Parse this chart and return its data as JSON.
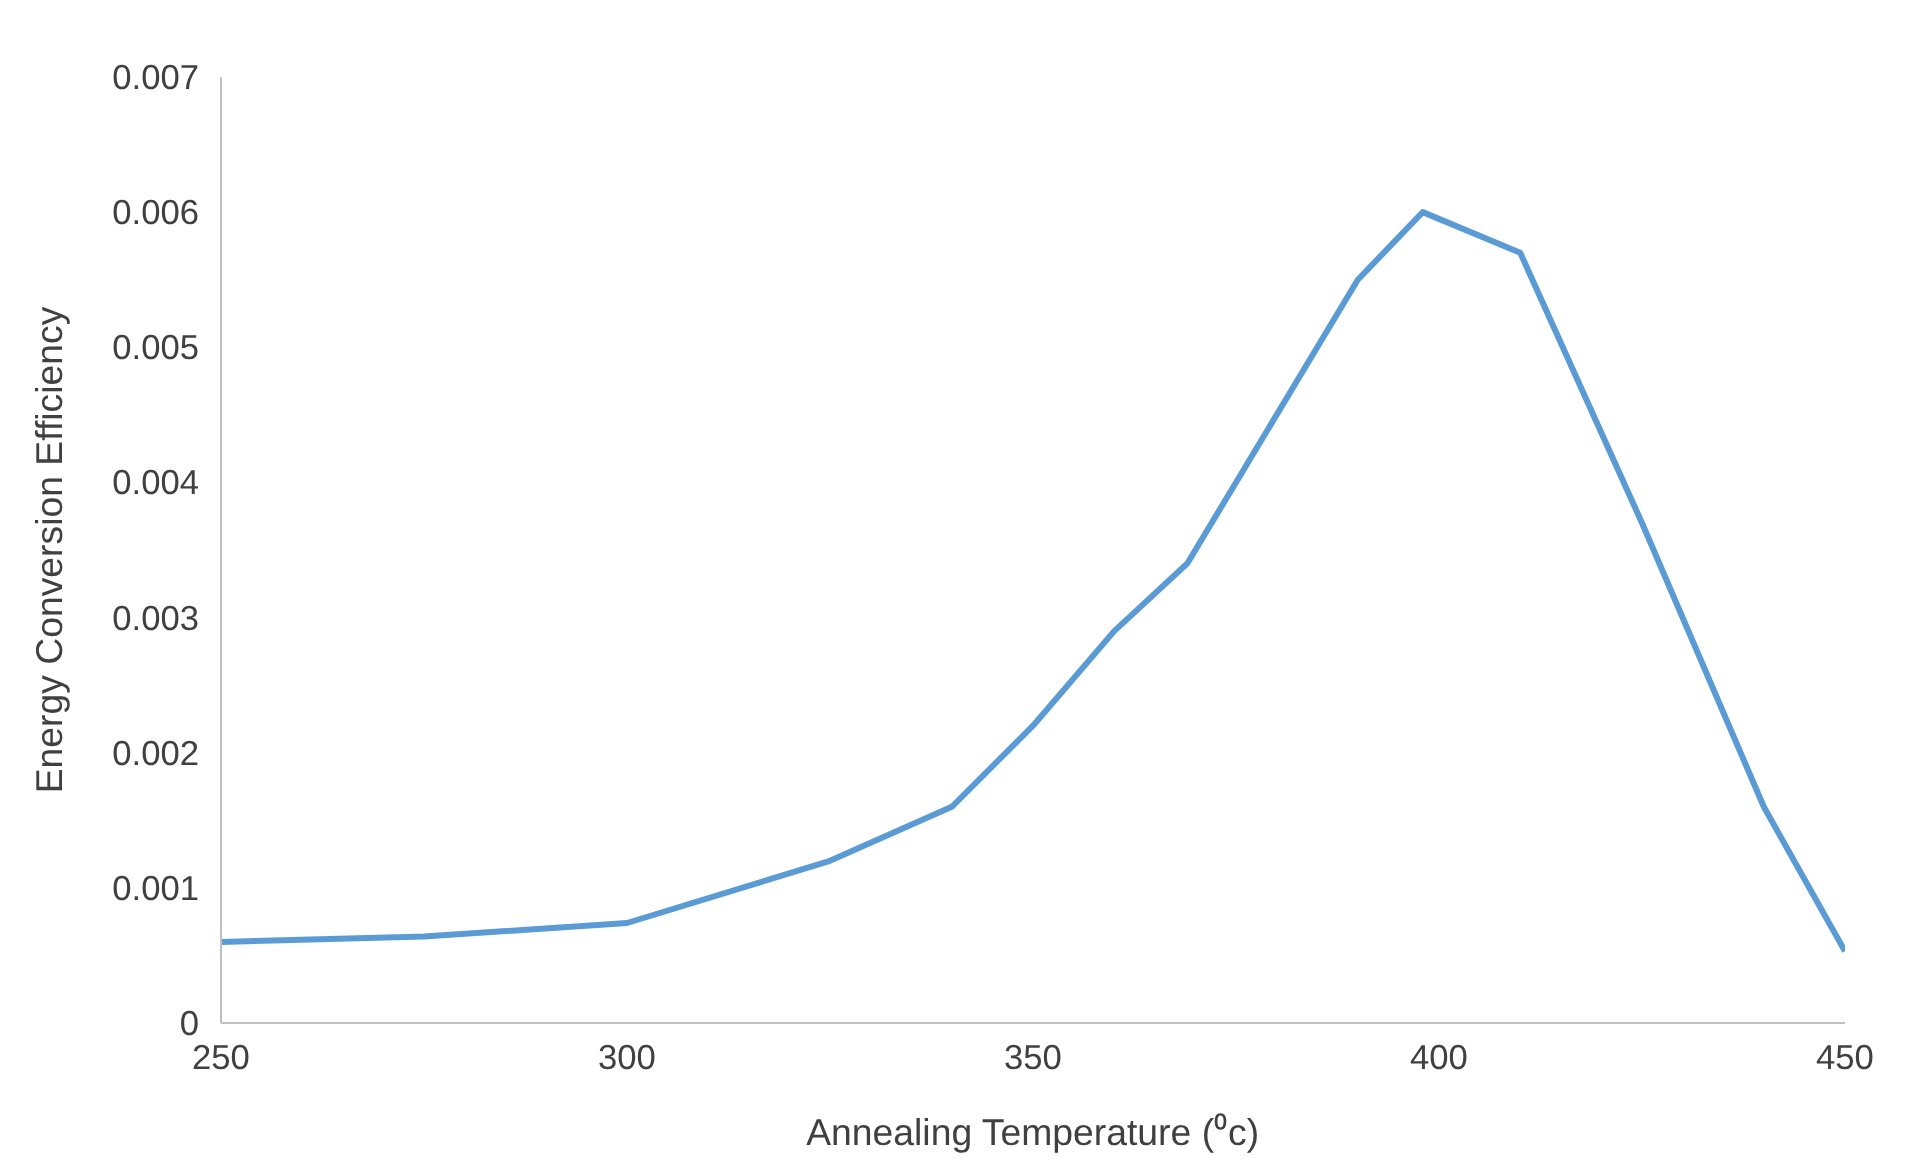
{
  "chart_data": {
    "type": "line",
    "xlabel": "Annealing Temperature (⁰c)",
    "ylabel": "Energy Conversion Efficiency",
    "x": [
      250,
      275,
      300,
      325,
      340,
      350,
      360,
      369,
      375,
      390,
      398,
      410,
      425,
      440,
      450
    ],
    "series": [
      {
        "color": "#5b9bd5",
        "values": [
          0.0006,
          0.00064,
          0.00074,
          0.0012,
          0.0016,
          0.0022,
          0.0029,
          0.0034,
          0.004,
          0.0055,
          0.006,
          0.0057,
          0.0037,
          0.0016,
          0.00053
        ]
      }
    ],
    "xlim": [
      250,
      450
    ],
    "xticks": [
      250,
      300,
      350,
      400,
      450
    ],
    "ylim": [
      0,
      0.007
    ],
    "yticks": [
      0,
      0.001,
      0.002,
      0.003,
      0.004,
      0.005,
      0.006,
      0.007
    ],
    "grid": false,
    "marker": "none",
    "line_style": "solid"
  }
}
